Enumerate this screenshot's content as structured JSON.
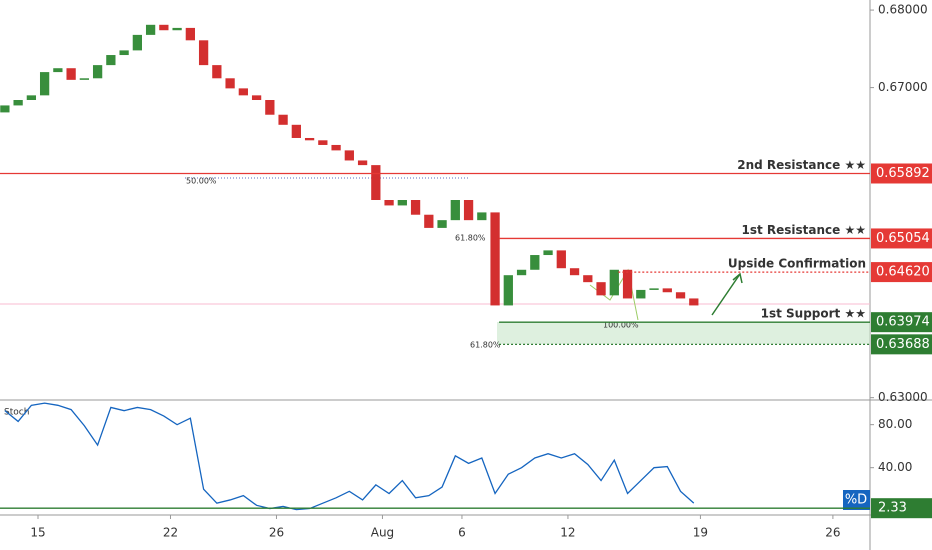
{
  "chart_data": {
    "type": "candlestick",
    "up_color": "#388e3c",
    "down_color": "#d32f2f",
    "x": [
      -1.25,
      -0.75,
      -0.25,
      0.25,
      0.75,
      1.25,
      1.75,
      2.25,
      2.75,
      3.25,
      3.75,
      4.25,
      4.75,
      5.25,
      5.75,
      6.25,
      6.75,
      7.25,
      7.75,
      8.25,
      8.75,
      9.25,
      9.75,
      10.25,
      10.75,
      11.25,
      11.75,
      12.25,
      12.75,
      13.25,
      13.75,
      14.25,
      14.75,
      15.25,
      15.75,
      16.25,
      16.75,
      17.25,
      17.75,
      18.25,
      18.75,
      19.25,
      19.75,
      20.25,
      20.75,
      21.25,
      21.75,
      22.25,
      22.75,
      23.25,
      23.75,
      24.25,
      24.75
    ],
    "open": [
      0.6668,
      0.6677,
      0.6684,
      0.669,
      0.672,
      0.6725,
      0.671,
      0.6712,
      0.6729,
      0.6742,
      0.6748,
      0.6768,
      0.6781,
      0.6774,
      0.6777,
      0.6761,
      0.6729,
      0.6712,
      0.6699,
      0.669,
      0.6684,
      0.6665,
      0.6652,
      0.6635,
      0.6632,
      0.6626,
      0.6619,
      0.6606,
      0.66,
      0.6555,
      0.6548,
      0.6555,
      0.6536,
      0.6519,
      0.6529,
      0.6555,
      0.6529,
      0.6539,
      0.6419,
      0.6458,
      0.6465,
      0.6484,
      0.649,
      0.6467,
      0.6458,
      0.6449,
      0.6432,
      0.6465,
      0.6428,
      0.6439,
      0.6441,
      0.6436,
      0.6428
    ],
    "close": [
      0.6677,
      0.6684,
      0.669,
      0.672,
      0.6725,
      0.671,
      0.6712,
      0.6729,
      0.6742,
      0.6748,
      0.6768,
      0.6781,
      0.6774,
      0.6777,
      0.6761,
      0.6729,
      0.6712,
      0.6699,
      0.669,
      0.6684,
      0.6665,
      0.6652,
      0.6635,
      0.6632,
      0.6626,
      0.6619,
      0.6606,
      0.66,
      0.6555,
      0.6548,
      0.6555,
      0.6536,
      0.6519,
      0.6529,
      0.6555,
      0.6529,
      0.6539,
      0.6419,
      0.6458,
      0.6465,
      0.6484,
      0.649,
      0.6467,
      0.6458,
      0.6449,
      0.6432,
      0.6465,
      0.6428,
      0.6439,
      0.6441,
      0.6436,
      0.6428,
      0.6419
    ],
    "xlim": [
      -1.434,
      31.4
    ],
    "xticks": [
      {
        "value": 0,
        "label": "15"
      },
      {
        "value": 5,
        "label": "22"
      },
      {
        "value": 9,
        "label": "26"
      },
      {
        "value": 13,
        "label": "Aug"
      },
      {
        "value": 16,
        "label": "6"
      },
      {
        "value": 20,
        "label": "12"
      },
      {
        "value": 25,
        "label": "19"
      },
      {
        "value": 30,
        "label": "26"
      }
    ],
    "ylim": [
      0.6297,
      0.6813
    ],
    "yticks": [
      {
        "value": 0.68,
        "label": "0.68000"
      },
      {
        "value": 0.67,
        "label": "0.67000"
      },
      {
        "value": 0.63,
        "label": "0.63000"
      }
    ],
    "levels": [
      {
        "name": "2nd Resistance ★★",
        "value": 0.65892,
        "color": "#e53935",
        "style": "solid",
        "start": -1.434
      },
      {
        "name": "1st Resistance ★★",
        "value": 0.65054,
        "color": "#e53935",
        "style": "solid",
        "start": 17.4
      },
      {
        "name": "Upside Confirmation",
        "value": 0.6462,
        "value_label": "0.64620",
        "color": "#e53935",
        "style": "dotted",
        "start": 21.9
      },
      {
        "name": "1st Support ★★",
        "value": 0.63974,
        "color": "#2e7d32",
        "style": "solid",
        "start": 17.4
      },
      {
        "value": 0.63688,
        "color": "#2e7d32",
        "style": "dotted",
        "start": 17.4
      }
    ],
    "annotations": [
      "50.00%",
      "61.80%",
      "61.80%",
      "100.00%"
    ],
    "stoch": {
      "name": "Stoch",
      "label": "%D",
      "color": "#1565c0",
      "values": [
        93,
        83,
        98,
        100,
        98,
        94,
        79,
        61,
        96,
        93,
        96,
        94,
        88,
        80,
        86,
        20,
        7,
        10,
        14,
        5,
        2,
        4,
        1,
        2,
        7,
        12,
        18,
        10,
        24,
        16,
        28,
        12,
        14,
        22,
        51,
        44,
        49,
        16,
        34,
        40,
        49,
        53,
        49,
        53,
        43,
        28,
        47,
        16,
        28,
        40,
        41,
        18,
        7
      ],
      "ylim": [
        -4,
        102
      ],
      "yticks": [
        {
          "value": 80,
          "label": "80.00"
        },
        {
          "value": 40,
          "label": "40.00"
        }
      ],
      "level": 2.33
    }
  }
}
